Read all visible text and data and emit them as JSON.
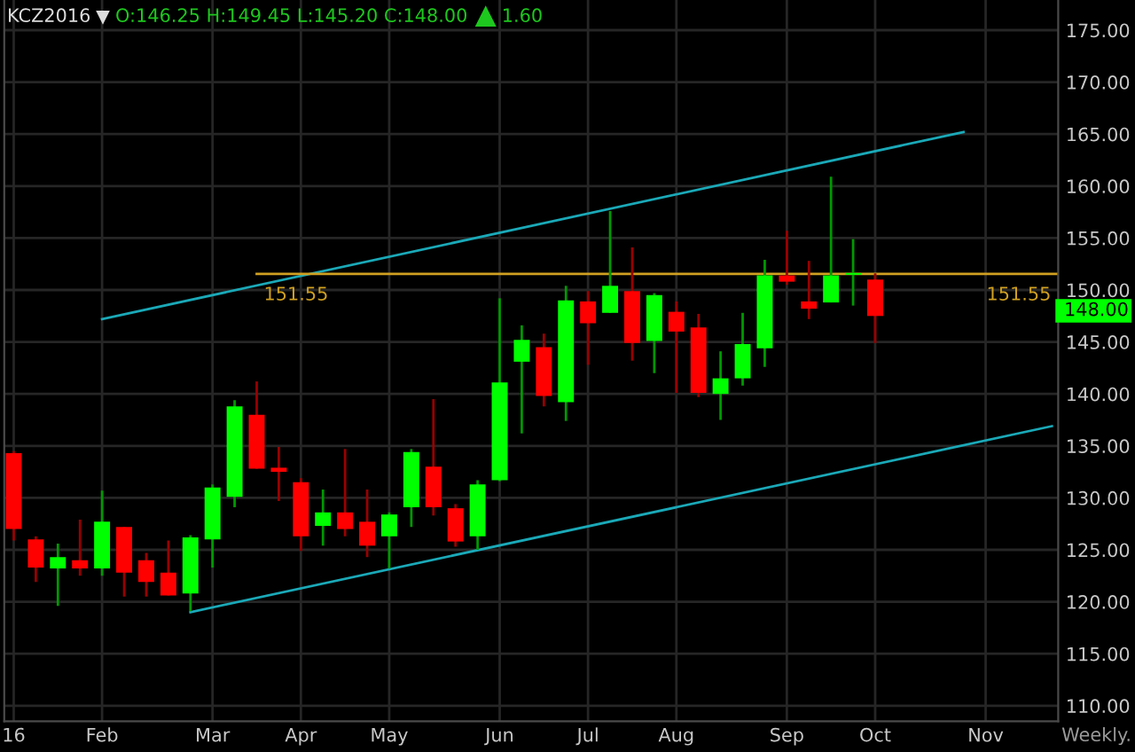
{
  "chart_data": {
    "type": "candlestick",
    "title": "KCZ2016",
    "subtitle": "O:146.25 H:149.45 L:145.20 C:148.00",
    "annotations": [
      "1.60",
      {
        "text": "148.00",
        "y": 148
      },
      "Weekly."
    ],
    "x": [
      "2016-01-04",
      "2016-01-11",
      "2016-01-18",
      "2016-01-25",
      "2016-02-01",
      "2016-02-08",
      "2016-02-15",
      "2016-02-22",
      "2016-02-29",
      "2016-03-07",
      "2016-03-14",
      "2016-03-21",
      "2016-03-28",
      "2016-04-04",
      "2016-04-11",
      "2016-04-18",
      "2016-04-25",
      "2016-05-02",
      "2016-05-09",
      "2016-05-16",
      "2016-05-23",
      "2016-05-30",
      "2016-06-06",
      "2016-06-13",
      "2016-06-20",
      "2016-06-27",
      "2016-07-04",
      "2016-07-11",
      "2016-07-18",
      "2016-07-25",
      "2016-08-01",
      "2016-08-08",
      "2016-08-15",
      "2016-08-22",
      "2016-08-29",
      "2016-09-05",
      "2016-09-12",
      "2016-09-19",
      "2016-09-26",
      "2016-10-03"
    ],
    "ohlc": [
      [
        134.3,
        134.5,
        125.9,
        127.0
      ],
      [
        126.0,
        126.3,
        121.9,
        123.3
      ],
      [
        123.2,
        125.6,
        119.6,
        124.3
      ],
      [
        124.0,
        127.9,
        122.5,
        123.2
      ],
      [
        123.2,
        130.7,
        122.5,
        127.7
      ],
      [
        127.2,
        127.2,
        120.5,
        122.8
      ],
      [
        124.0,
        124.7,
        120.5,
        121.9
      ],
      [
        122.8,
        125.9,
        120.6,
        120.6
      ],
      [
        120.8,
        126.4,
        119.1,
        126.2
      ],
      [
        126.0,
        131.3,
        123.3,
        131.0
      ],
      [
        130.1,
        139.4,
        129.1,
        138.8
      ],
      [
        138.0,
        141.2,
        132.8,
        132.8
      ],
      [
        132.9,
        134.9,
        129.7,
        132.5
      ],
      [
        131.5,
        131.9,
        124.9,
        126.3
      ],
      [
        127.3,
        130.8,
        125.4,
        128.6
      ],
      [
        128.6,
        134.7,
        126.3,
        127.0
      ],
      [
        127.7,
        130.8,
        124.3,
        125.4
      ],
      [
        126.3,
        128.6,
        123.2,
        128.4
      ],
      [
        129.1,
        134.7,
        127.2,
        134.4
      ],
      [
        133.0,
        139.5,
        128.3,
        129.1
      ],
      [
        129.0,
        129.4,
        125.3,
        125.8
      ],
      [
        126.3,
        131.7,
        125.0,
        131.3
      ],
      [
        131.7,
        149.2,
        131.6,
        141.1
      ],
      [
        143.1,
        146.6,
        136.2,
        145.2
      ],
      [
        144.5,
        145.8,
        138.8,
        139.8
      ],
      [
        139.2,
        150.4,
        137.4,
        149.0
      ],
      [
        148.9,
        149.9,
        142.8,
        146.8
      ],
      [
        147.8,
        157.6,
        147.8,
        150.4
      ],
      [
        149.9,
        154.1,
        143.2,
        144.9
      ],
      [
        145.1,
        149.7,
        142.0,
        149.5
      ],
      [
        147.9,
        148.9,
        140.1,
        146.0
      ],
      [
        146.4,
        147.7,
        139.7,
        140.1
      ],
      [
        140.0,
        144.1,
        137.5,
        141.5
      ],
      [
        141.5,
        147.8,
        140.8,
        144.8
      ],
      [
        144.4,
        152.9,
        142.6,
        151.4
      ],
      [
        151.4,
        155.7,
        150.5,
        150.8
      ],
      [
        148.9,
        152.8,
        147.2,
        148.2
      ],
      [
        148.8,
        160.9,
        148.8,
        151.4
      ],
      [
        151.5,
        154.9,
        148.5,
        151.6
      ],
      [
        151.0,
        151.6,
        144.9,
        147.5
      ]
    ],
    "colors": [
      "#ff0000",
      "#ff0000",
      "#00ff00",
      "#ff0000",
      "#00ff00",
      "#ff0000",
      "#ff0000",
      "#ff0000",
      "#00ff00",
      "#00ff00",
      "#00ff00",
      "#ff0000",
      "#ff0000",
      "#ff0000",
      "#00ff00",
      "#ff0000",
      "#ff0000",
      "#00ff00",
      "#00ff00",
      "#ff0000",
      "#ff0000",
      "#00ff00",
      "#00ff00",
      "#00ff00",
      "#ff0000",
      "#00ff00",
      "#ff0000",
      "#00ff00",
      "#ff0000",
      "#00ff00",
      "#ff0000",
      "#ff0000",
      "#00ff00",
      "#00ff00",
      "#00ff00",
      "#ff0000",
      "#ff0000",
      "#00ff00",
      "#00ff00",
      "#ff0000"
    ],
    "series": [
      {
        "type": "line",
        "color": "#1aa9b8",
        "x": [
          "2016-02-01",
          "2016-10-31"
        ],
        "values": [
          147.2,
          165.2
        ]
      },
      {
        "type": "line",
        "color": "#1aa9b8",
        "x": [
          "2016-02-29",
          "2016-11-28"
        ],
        "values": [
          119.0,
          136.9
        ]
      },
      {
        "type": "line",
        "color": "#d0a020",
        "x": [
          "2016-03-21",
          "2016-11-30"
        ],
        "values": [
          151.55,
          151.55
        ],
        "value_labels": [
          "151.55",
          "151.55"
        ]
      }
    ],
    "xlim": [
      "2016-01-01",
      "2016-11-30"
    ],
    "xticks": [
      {
        "value": "2016-01-04",
        "label": "16"
      },
      {
        "value": "2016-02-01",
        "label": "Feb"
      },
      {
        "value": "2016-03-07",
        "label": "Mar"
      },
      {
        "value": "2016-04-04",
        "label": "Apr"
      },
      {
        "value": "2016-05-02",
        "label": "May"
      },
      {
        "value": "2016-06-06",
        "label": "Jun"
      },
      {
        "value": "2016-07-04",
        "label": "Jul"
      },
      {
        "value": "2016-08-01",
        "label": "Aug"
      },
      {
        "value": "2016-09-05",
        "label": "Sep"
      },
      {
        "value": "2016-10-03",
        "label": "Oct"
      },
      {
        "value": "2016-11-07",
        "label": "Nov"
      }
    ],
    "ylim": [
      108.5,
      177.9
    ],
    "yticks": [
      {
        "value": 110,
        "label": "110.00"
      },
      {
        "value": 115,
        "label": "115.00"
      },
      {
        "value": 120,
        "label": "120.00"
      },
      {
        "value": 125,
        "label": "125.00"
      },
      {
        "value": 130,
        "label": "130.00"
      },
      {
        "value": 135,
        "label": "135.00"
      },
      {
        "value": 140,
        "label": "140.00"
      },
      {
        "value": 145,
        "label": "145.00"
      },
      {
        "value": 150,
        "label": "150.00"
      },
      {
        "value": 155,
        "label": "155.00"
      },
      {
        "value": 160,
        "label": "160.00"
      },
      {
        "value": 165,
        "label": "165.00"
      },
      {
        "value": 170,
        "label": "170.00"
      },
      {
        "value": 175,
        "label": "175.00"
      }
    ],
    "grid": true
  }
}
